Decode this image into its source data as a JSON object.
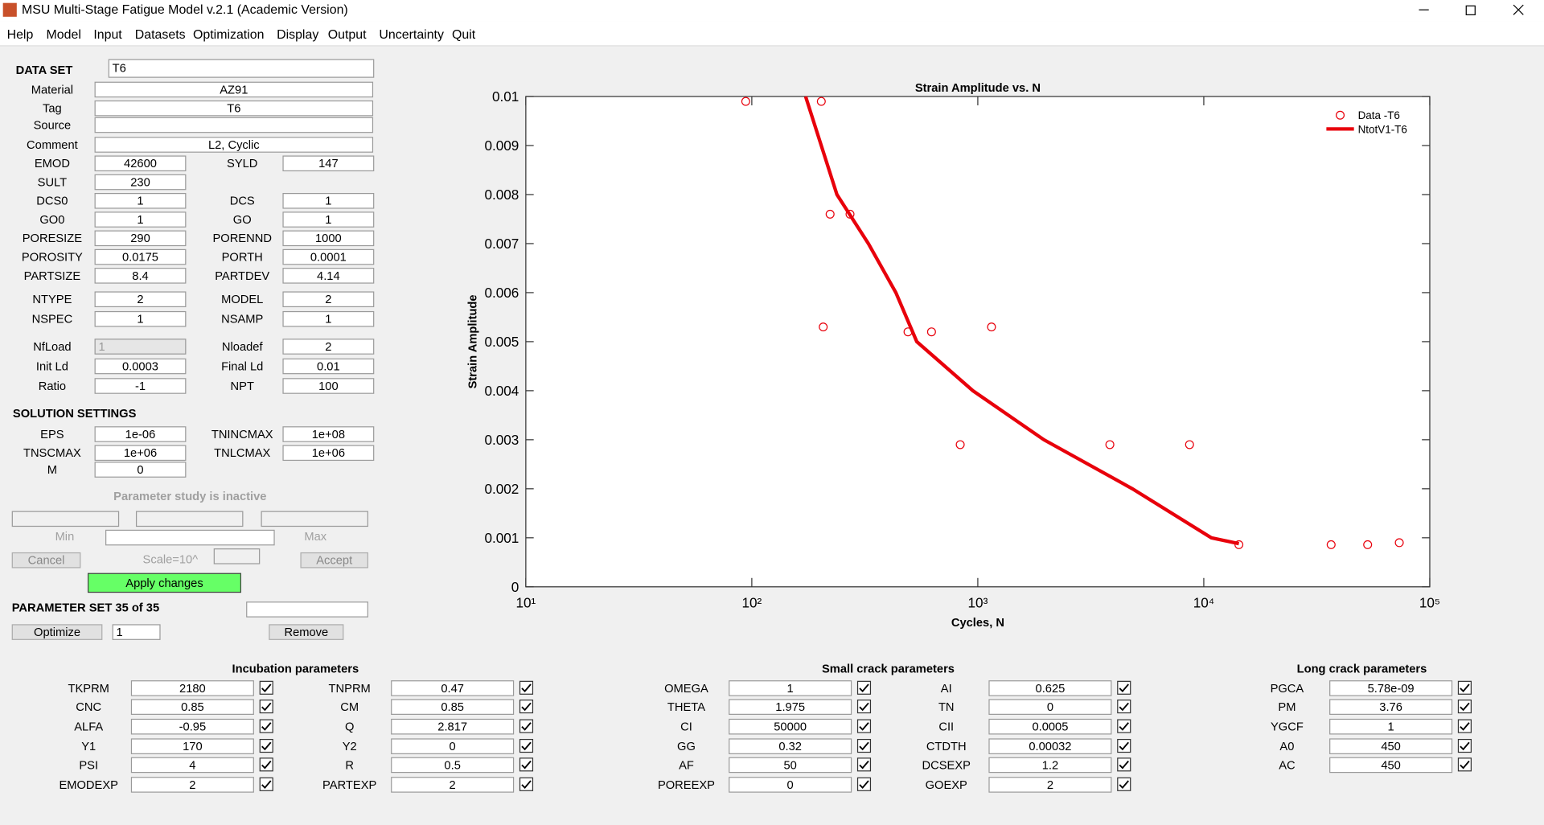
{
  "window": {
    "title": "MSU Multi-Stage Fatigue Model v.2.1 (Academic Version)"
  },
  "menu": [
    "Help",
    "Model",
    "Input",
    "Datasets",
    "Optimization",
    "Display",
    "Output",
    "Uncertainty",
    "Quit"
  ],
  "dataset": {
    "label": "DATA SET",
    "selected": "T6",
    "fields": [
      {
        "label": "Material",
        "value": "AZ91"
      },
      {
        "label": "Tag",
        "value": "T6"
      },
      {
        "label": "Source"
      },
      {
        "label": "Comment",
        "value": "L2, Cyclic"
      }
    ]
  },
  "properties": [
    [
      {
        "label": "EMOD",
        "value": "42600"
      },
      {
        "label": "SYLD",
        "value": "147"
      }
    ],
    [
      {
        "label": "SULT",
        "value": "230"
      }
    ],
    [
      {
        "label": "DCS0",
        "value": "1"
      },
      {
        "label": "DCS",
        "value": "1"
      }
    ],
    [
      {
        "label": "GO0",
        "value": "1"
      },
      {
        "label": "GO",
        "value": "1"
      }
    ],
    [
      {
        "label": "PORESIZE",
        "value": "290"
      },
      {
        "label": "PORENND",
        "value": "1000"
      }
    ],
    [
      {
        "label": "POROSITY",
        "value": "0.0175"
      },
      {
        "label": "PORTH",
        "value": "0.0001"
      }
    ],
    [
      {
        "label": "PARTSIZE",
        "value": "8.4"
      },
      {
        "label": "PARTDEV",
        "value": "4.14"
      }
    ],
    [
      {
        "label": "NTYPE",
        "value": "2"
      },
      {
        "label": "MODEL",
        "value": "2"
      }
    ],
    [
      {
        "label": "NSPEC",
        "value": "1"
      },
      {
        "label": "NSAMP",
        "value": "1"
      }
    ],
    [
      {
        "label": "NfLoad",
        "value": "1"
      },
      {
        "label": "Nloadef",
        "value": "2"
      }
    ],
    [
      {
        "label": "Init Ld",
        "value": "0.0003"
      },
      {
        "label": "Final Ld",
        "value": "0.01"
      }
    ],
    [
      {
        "label": "Ratio",
        "value": "-1"
      },
      {
        "label": "NPT",
        "value": "100"
      }
    ]
  ],
  "solution": {
    "title": "SOLUTION SETTINGS",
    "rows": [
      [
        {
          "label": "EPS",
          "value": "1e-06"
        },
        {
          "label": "TNINCMAX",
          "value": "1e+08"
        }
      ],
      [
        {
          "label": "TNSCMAX",
          "value": "1e+06"
        },
        {
          "label": "TNLCMAX",
          "value": "1e+06"
        }
      ],
      [
        {
          "label": "M",
          "value": "0"
        }
      ]
    ]
  },
  "parameter_study": {
    "status": "Parameter study is inactive",
    "min": "Min",
    "max": "Max",
    "cancel": "Cancel",
    "scale": "Scale=10^",
    "accept": "Accept",
    "apply": "Apply changes"
  },
  "parameter_set": {
    "label": "PARAMETER SET 35 of 35",
    "optimize": "Optimize",
    "selected": "1",
    "remove": "Remove"
  },
  "groups": [
    {
      "title": "Incubation parameters",
      "rows": [
        [
          {
            "label": "TKPRM",
            "value": "2180"
          },
          {
            "label": "TNPRM",
            "value": "0.47"
          }
        ],
        [
          {
            "label": "CNC",
            "value": "0.85"
          },
          {
            "label": "CM",
            "value": "0.85"
          }
        ],
        [
          {
            "label": "ALFA",
            "value": "-0.95"
          },
          {
            "label": "Q",
            "value": "2.817"
          }
        ],
        [
          {
            "label": "Y1",
            "value": "170"
          },
          {
            "label": "Y2",
            "value": "0"
          }
        ],
        [
          {
            "label": "PSI",
            "value": "4"
          },
          {
            "label": "R",
            "value": "0.5"
          }
        ],
        [
          {
            "label": "EMODEXP",
            "value": "2"
          },
          {
            "label": "PARTEXP",
            "value": "2"
          }
        ]
      ]
    },
    {
      "title": "Small crack parameters",
      "rows": [
        [
          {
            "label": "OMEGA",
            "value": "1"
          },
          {
            "label": "AI",
            "value": "0.625"
          }
        ],
        [
          {
            "label": "THETA",
            "value": "1.975"
          },
          {
            "label": "TN",
            "value": "0"
          }
        ],
        [
          {
            "label": "CI",
            "value": "50000"
          },
          {
            "label": "CII",
            "value": "0.0005"
          }
        ],
        [
          {
            "label": "GG",
            "value": "0.32"
          },
          {
            "label": "CTDTH",
            "value": "0.00032"
          }
        ],
        [
          {
            "label": "AF",
            "value": "50"
          },
          {
            "label": "DCSEXP",
            "value": "1.2"
          }
        ],
        [
          {
            "label": "POREEXP",
            "value": "0"
          },
          {
            "label": "GOEXP",
            "value": "2"
          }
        ]
      ]
    },
    {
      "title": "Long crack parameters",
      "rows": [
        [
          {
            "label": "PGCA",
            "value": "5.78e-09"
          }
        ],
        [
          {
            "label": "PM",
            "value": "3.76"
          }
        ],
        [
          {
            "label": "YGCF",
            "value": "1"
          }
        ],
        [
          {
            "label": "A0",
            "value": "450"
          }
        ],
        [
          {
            "label": "AC",
            "value": "450"
          }
        ]
      ]
    }
  ],
  "chart_data": {
    "type": "line",
    "title": "Strain Amplitude vs. N",
    "x_label": "Cycles, N",
    "y_label": "Strain Amplitude",
    "xscale": "log",
    "xlim": [
      10,
      100000
    ],
    "xticks": [
      {
        "value": 10,
        "label": "10¹"
      },
      {
        "value": 100,
        "label": "10²"
      },
      {
        "value": 1000,
        "label": "10³"
      },
      {
        "value": 10000,
        "label": "10⁴"
      },
      {
        "value": 100000,
        "label": "10⁵"
      }
    ],
    "ylim": [
      0,
      0.01
    ],
    "yticks": [
      0,
      0.001,
      0.002,
      0.003,
      0.004,
      0.005,
      0.006,
      0.007,
      0.008,
      0.009,
      0.01
    ],
    "legend": "upper right",
    "series": [
      {
        "name": "Data -T6",
        "color": "#e8000b",
        "style": "markers",
        "x": [
          94,
          203,
          222,
          272,
          207,
          491,
          624,
          1150,
          836,
          3840,
          8650,
          14300,
          36600,
          53100,
          73300
        ],
        "values": [
          0.0099,
          0.0099,
          0.0076,
          0.0076,
          0.0053,
          0.0052,
          0.0052,
          0.0053,
          0.0029,
          0.0029,
          0.0029,
          0.00086,
          0.00086,
          0.00086,
          0.0009
        ]
      },
      {
        "name": "NtotV1-T6",
        "color": "#e8000b",
        "style": "line",
        "x": [
          173,
          238,
          328,
          434,
          537,
          951,
          1960,
          4830,
          10800,
          14300
        ],
        "values": [
          0.01,
          0.008,
          0.007,
          0.006,
          0.005,
          0.004,
          0.003,
          0.002,
          0.001,
          0.00088
        ]
      }
    ]
  }
}
